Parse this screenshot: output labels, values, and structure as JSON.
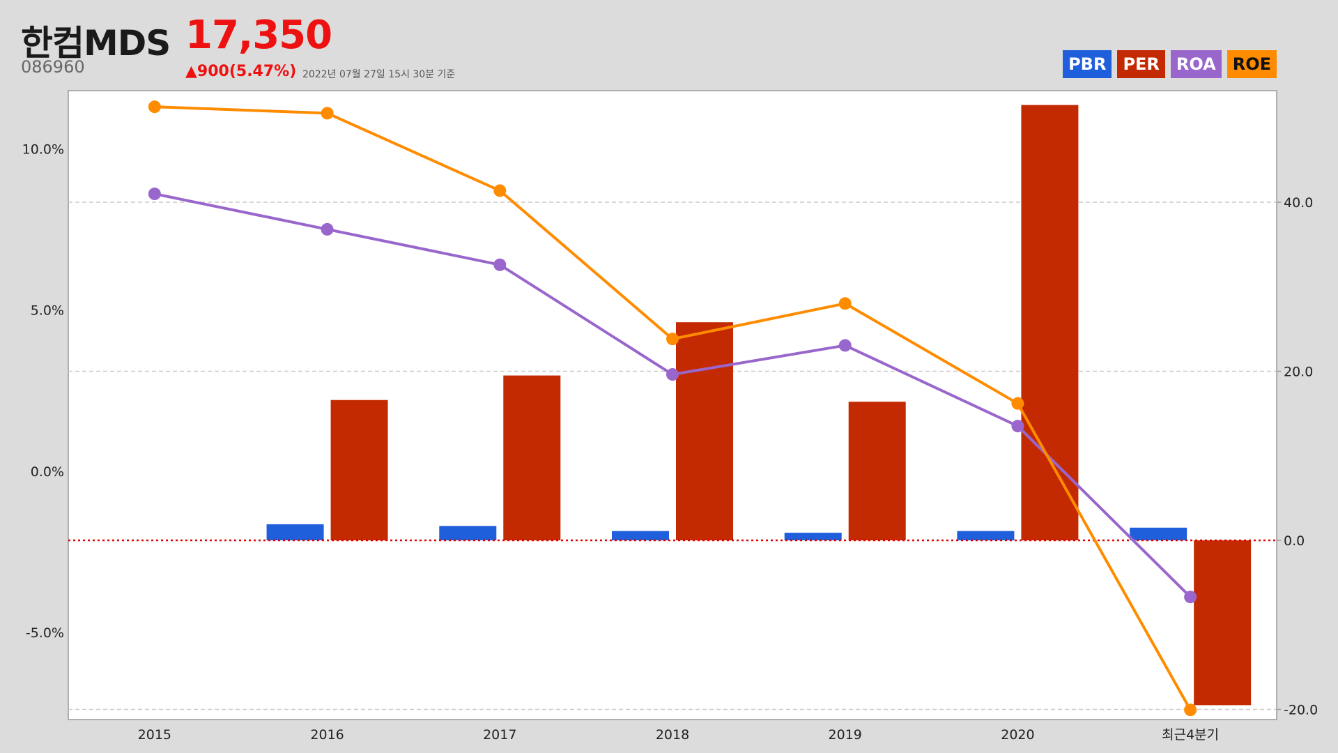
{
  "stock": {
    "name": "한컴MDS",
    "code": "086960",
    "price": "17,350",
    "change": "▲900(5.47%)",
    "as_of": "2022년 07월 27일 15시 30분 기준"
  },
  "legend": [
    {
      "label": "PBR",
      "color": "#1f5fdc",
      "text_color": "#ffffff"
    },
    {
      "label": "PER",
      "color": "#c42a02",
      "text_color": "#ffffff"
    },
    {
      "label": "ROA",
      "color": "#9966cc",
      "text_color": "#ffffff"
    },
    {
      "label": "ROE",
      "color": "#ff8c00",
      "text_color": "#111111"
    }
  ],
  "chart_data": {
    "type": "bar",
    "categories": [
      "2015",
      "2016",
      "2017",
      "2018",
      "2019",
      "2020",
      "최근4분기"
    ],
    "left_axis": {
      "ticks": [
        "10.0%",
        "5.0%",
        "0.0%",
        "-5.0%"
      ],
      "ylim": [
        -7.7,
        11.8
      ]
    },
    "right_axis": {
      "ticks": [
        "40.0",
        "20.0",
        "0.0",
        "-20.0"
      ],
      "ylim": [
        -21.2,
        53.2
      ]
    },
    "series": [
      {
        "name": "PBR",
        "type": "bar",
        "axis": "right",
        "color": "#1f5fdc",
        "values": [
          null,
          1.9,
          1.7,
          1.1,
          0.9,
          1.1,
          1.5
        ]
      },
      {
        "name": "PER",
        "type": "bar",
        "axis": "right",
        "color": "#c42a02",
        "values": [
          null,
          16.6,
          19.5,
          25.8,
          16.4,
          51.5,
          -19.5
        ]
      },
      {
        "name": "ROA",
        "type": "line",
        "axis": "left",
        "color": "#9966cc",
        "values": [
          8.6,
          7.5,
          6.4,
          3.0,
          3.9,
          1.4,
          -3.9
        ]
      },
      {
        "name": "ROE",
        "type": "line",
        "axis": "left",
        "color": "#ff8c00",
        "values": [
          11.3,
          11.1,
          8.7,
          4.1,
          5.2,
          2.1,
          -7.4
        ]
      }
    ],
    "gridlines": true,
    "zero_line": {
      "axis": "right",
      "value": 0,
      "color": "#e00000",
      "style": "dotted"
    },
    "legend_position": "top-right"
  }
}
